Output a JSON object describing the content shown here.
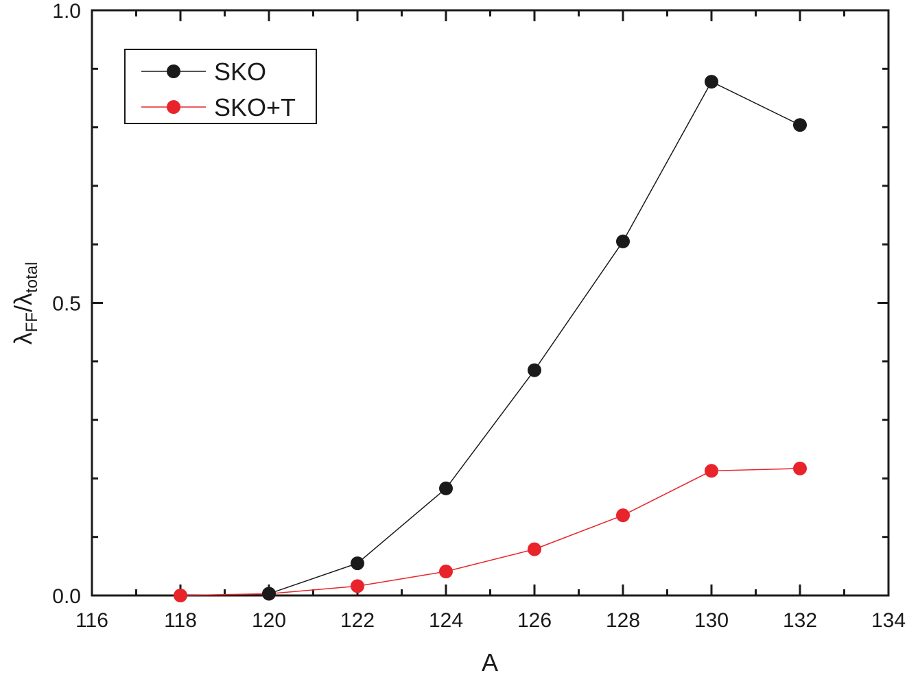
{
  "chart_data": {
    "type": "line",
    "title": "",
    "xlabel": "A",
    "ylabel": {
      "main": "λ",
      "sub1": "FF",
      "slash": "/λ",
      "sub2": "total"
    },
    "xlim": [
      116,
      134
    ],
    "ylim": [
      0.0,
      1.0
    ],
    "xticks": [
      "116",
      "118",
      "120",
      "122",
      "124",
      "126",
      "128",
      "130",
      "132",
      "134"
    ],
    "yticks": [
      "0.0",
      "0.5",
      "1.0"
    ],
    "grid": false,
    "legend_position": "top-left",
    "series": [
      {
        "name": "SKO",
        "color": "#1a1a1a",
        "x": [
          120,
          122,
          124,
          126,
          128,
          130,
          132
        ],
        "y": [
          0.003,
          0.055,
          0.183,
          0.385,
          0.605,
          0.878,
          0.804
        ]
      },
      {
        "name": "SKO+T",
        "color": "#e8232a",
        "x": [
          118,
          120,
          122,
          124,
          126,
          128,
          130,
          132
        ],
        "y": [
          0.0,
          0.003,
          0.016,
          0.041,
          0.079,
          0.137,
          0.213,
          0.217
        ]
      }
    ]
  }
}
